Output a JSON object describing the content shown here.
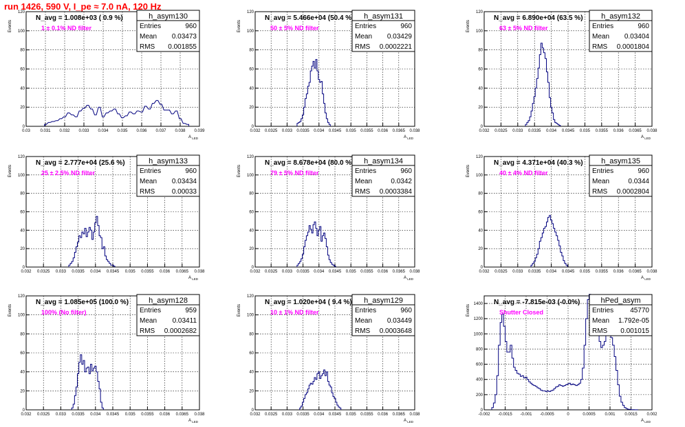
{
  "canvas": {
    "title": "run 1426,   590 V, I_pe ≈ 7.0 nA, 120 Hz"
  },
  "colors": {
    "title": "#ff0000",
    "annotation": "#ff00ff",
    "histogram": "#00007f",
    "grid": "#000000"
  },
  "chart_data": [
    {
      "type": "bar",
      "stat_title": "h_asym130",
      "navg": "N_avg = 1.008e+03 ( 0.9 %)",
      "note": "1 ± 0.1% ND filter",
      "stats": [
        [
          "Entries",
          "960"
        ],
        [
          "Mean",
          "0.03473"
        ],
        [
          "RMS",
          "0.001855"
        ]
      ],
      "ylabel": "Events",
      "xlabel": "A_LED",
      "xlim": [
        0.03,
        0.039
      ],
      "ylim": [
        0,
        120
      ],
      "xticks": [
        "0.03",
        "0.031",
        "0.032",
        "0.033",
        "0.034",
        "0.035",
        "0.036",
        "0.037",
        "0.038",
        "0.039"
      ],
      "yticks": [
        "0",
        "20",
        "40",
        "60",
        "80",
        "100",
        "120"
      ],
      "bin_width": 9e-05,
      "bins_x": [
        0.031,
        0.0312,
        0.0314,
        0.0316,
        0.0318,
        0.032,
        0.0322,
        0.0324,
        0.0326,
        0.0328,
        0.033,
        0.0332,
        0.0334,
        0.0336,
        0.0338,
        0.034,
        0.0342,
        0.0344,
        0.0346,
        0.0348,
        0.035,
        0.0352,
        0.0354,
        0.0356,
        0.0358,
        0.036,
        0.0362,
        0.0364,
        0.0366,
        0.0368,
        0.037,
        0.0372,
        0.0374,
        0.0376,
        0.0378,
        0.038,
        0.0382,
        0.0384
      ],
      "counts": [
        2,
        4,
        5,
        6,
        8,
        10,
        14,
        12,
        10,
        16,
        19,
        22,
        18,
        12,
        20,
        10,
        14,
        16,
        18,
        13,
        9,
        11,
        15,
        13,
        16,
        15,
        21,
        18,
        24,
        27,
        23,
        17,
        17,
        13,
        16,
        8,
        3,
        2
      ]
    },
    {
      "type": "bar",
      "stat_title": "h_asym131",
      "navg": "N_avg = 5.466e+04 (50.4 %)",
      "note": "50 ± 5% ND filter",
      "stats": [
        [
          "Entries",
          "960"
        ],
        [
          "Mean",
          "0.03429"
        ],
        [
          "RMS",
          "0.0002221"
        ]
      ],
      "ylabel": "Events",
      "xlabel": "A_LED",
      "xlim": [
        0.032,
        0.038
      ],
      "ylim": [
        0,
        120
      ],
      "xticks": [
        "0.032",
        "0.0325",
        "0.033",
        "0.0335",
        "0.034",
        "0.0345",
        "0.035",
        "0.0355",
        "0.036",
        "0.0365",
        "0.038"
      ],
      "yticks": [
        "0",
        "20",
        "40",
        "60",
        "80",
        "100",
        "120"
      ],
      "bin_width": 5e-05,
      "bins_x": [
        0.0336,
        0.03365,
        0.0337,
        0.03375,
        0.0338,
        0.03385,
        0.0339,
        0.03395,
        0.034,
        0.03405,
        0.0341,
        0.03415,
        0.0342,
        0.03425,
        0.0343,
        0.03435,
        0.0344,
        0.03445,
        0.0345,
        0.03455,
        0.0346,
        0.03465,
        0.0347,
        0.03475,
        0.0348
      ],
      "counts": [
        3,
        4,
        5,
        8,
        12,
        20,
        29,
        34,
        42,
        46,
        58,
        63,
        68,
        61,
        70,
        58,
        49,
        46,
        47,
        34,
        24,
        14,
        8,
        4,
        2
      ]
    },
    {
      "type": "bar",
      "stat_title": "h_asym132",
      "navg": "N_avg = 6.890e+04 (63.5 %)",
      "note": "63 ± 5% ND filter",
      "stats": [
        [
          "Entries",
          "960"
        ],
        [
          "Mean",
          "0.03404"
        ],
        [
          "RMS",
          "0.0001804"
        ]
      ],
      "ylabel": "Events",
      "xlabel": "A_LED",
      "xlim": [
        0.032,
        0.038
      ],
      "ylim": [
        0,
        120
      ],
      "xticks": [
        "0.032",
        "0.0325",
        "0.033",
        "0.0335",
        "0.034",
        "0.0345",
        "0.035",
        "0.0355",
        "0.036",
        "0.0365",
        "0.038"
      ],
      "yticks": [
        "0",
        "20",
        "40",
        "60",
        "80",
        "100",
        "120"
      ],
      "bin_width": 5e-05,
      "bins_x": [
        0.0335,
        0.03355,
        0.0336,
        0.03365,
        0.0337,
        0.03375,
        0.0338,
        0.03385,
        0.0339,
        0.03395,
        0.034,
        0.03405,
        0.0341,
        0.03415,
        0.0342,
        0.03425,
        0.0343,
        0.03435,
        0.0344,
        0.03445,
        0.0345,
        0.03455,
        0.0346,
        0.03465,
        0.0347
      ],
      "counts": [
        2,
        4,
        6,
        10,
        16,
        24,
        31,
        40,
        50,
        61,
        75,
        87,
        82,
        77,
        71,
        57,
        46,
        30,
        20,
        14,
        7,
        4,
        3,
        2,
        1
      ]
    },
    {
      "type": "bar",
      "stat_title": "h_asym133",
      "navg": "N_avg = 2.777e+04 (25.6 %)",
      "note": "25 ± 2.5% ND filter",
      "stats": [
        [
          "Entries",
          "960"
        ],
        [
          "Mean",
          "0.03434"
        ],
        [
          "RMS",
          "0.00033"
        ]
      ],
      "ylabel": "Events",
      "xlabel": "A_LED",
      "xlim": [
        0.032,
        0.038
      ],
      "ylim": [
        0,
        120
      ],
      "xticks": [
        "0.032",
        "0.0325",
        "0.033",
        "0.0335",
        "0.034",
        "0.0345",
        "0.035",
        "0.0355",
        "0.036",
        "0.0365",
        "0.038"
      ],
      "yticks": [
        "0",
        "20",
        "40",
        "60",
        "80",
        "100",
        "120"
      ],
      "bin_width": 5e-05,
      "bins_x": [
        0.0335,
        0.03355,
        0.0336,
        0.03365,
        0.0337,
        0.03375,
        0.0338,
        0.03385,
        0.0339,
        0.03395,
        0.034,
        0.03405,
        0.0341,
        0.03415,
        0.0342,
        0.03425,
        0.0343,
        0.03435,
        0.0344,
        0.03445,
        0.0345,
        0.03455,
        0.0346,
        0.03465,
        0.0347,
        0.03475,
        0.0348,
        0.03485,
        0.0349,
        0.03495,
        0.035,
        0.03505
      ],
      "counts": [
        2,
        4,
        6,
        10,
        16,
        22,
        27,
        34,
        32,
        38,
        36,
        42,
        33,
        38,
        43,
        40,
        30,
        38,
        48,
        55,
        45,
        34,
        32,
        20,
        22,
        12,
        8,
        6,
        4,
        2,
        2,
        1
      ]
    },
    {
      "type": "bar",
      "stat_title": "h_asym134",
      "navg": "N_avg = 8.678e+04 (80.0 %)",
      "note": "79 ± 5% ND filter",
      "stats": [
        [
          "Entries",
          "960"
        ],
        [
          "Mean",
          "0.0342"
        ],
        [
          "RMS",
          "0.0003384"
        ]
      ],
      "ylabel": "Events",
      "xlabel": "A_LED",
      "xlim": [
        0.032,
        0.038
      ],
      "ylim": [
        0,
        120
      ],
      "xticks": [
        "0.032",
        "0.0325",
        "0.033",
        "0.0335",
        "0.034",
        "0.0345",
        "0.035",
        "0.0355",
        "0.036",
        "0.0365",
        "0.038"
      ],
      "yticks": [
        "0",
        "20",
        "40",
        "60",
        "80",
        "100",
        "120"
      ],
      "bin_width": 5e-05,
      "bins_x": [
        0.0336,
        0.03365,
        0.0337,
        0.03375,
        0.0338,
        0.03385,
        0.0339,
        0.03395,
        0.034,
        0.03405,
        0.0341,
        0.03415,
        0.0342,
        0.03425,
        0.0343,
        0.03435,
        0.0344,
        0.03445,
        0.0345,
        0.03455,
        0.0346,
        0.03465,
        0.0347,
        0.03475,
        0.0348,
        0.03485,
        0.0349,
        0.03495,
        0.035
      ],
      "counts": [
        2,
        4,
        6,
        9,
        14,
        22,
        29,
        34,
        38,
        45,
        41,
        37,
        46,
        49,
        42,
        34,
        40,
        44,
        28,
        34,
        37,
        31,
        22,
        13,
        8,
        5,
        3,
        2,
        1
      ]
    },
    {
      "type": "bar",
      "stat_title": "h_asym135",
      "navg": "N_avg = 4.371e+04 (40.3 %)",
      "note": "40 ± 4% ND filter",
      "stats": [
        [
          "Entries",
          "960"
        ],
        [
          "Mean",
          "0.0344"
        ],
        [
          "RMS",
          "0.0002804"
        ]
      ],
      "ylabel": "Events",
      "xlabel": "A_LED",
      "xlim": [
        0.032,
        0.038
      ],
      "ylim": [
        0,
        120
      ],
      "xticks": [
        "0.032",
        "0.0325",
        "0.033",
        "0.0335",
        "0.034",
        "0.0345",
        "0.035",
        "0.0355",
        "0.036",
        "0.0365",
        "0.038"
      ],
      "yticks": [
        "0",
        "20",
        "40",
        "60",
        "80",
        "100",
        "120"
      ],
      "bin_width": 5e-05,
      "bins_x": [
        0.0337,
        0.03375,
        0.0338,
        0.03385,
        0.0339,
        0.03395,
        0.034,
        0.03405,
        0.0341,
        0.03415,
        0.0342,
        0.03425,
        0.0343,
        0.03435,
        0.0344,
        0.03445,
        0.0345,
        0.03455,
        0.0346,
        0.03465,
        0.0347,
        0.03475,
        0.0348,
        0.03485,
        0.0349,
        0.03495
      ],
      "counts": [
        2,
        4,
        6,
        10,
        14,
        20,
        28,
        32,
        37,
        42,
        44,
        49,
        54,
        56,
        51,
        47,
        42,
        38,
        34,
        29,
        23,
        16,
        12,
        7,
        4,
        2
      ]
    },
    {
      "type": "bar",
      "stat_title": "h_asym128",
      "navg": "N_avg = 1.085e+05 (100.0 %)",
      "note": "100% (No filter)",
      "stats": [
        [
          "Entries",
          "959"
        ],
        [
          "Mean",
          "0.03411"
        ],
        [
          "RMS",
          "0.0002682"
        ]
      ],
      "ylabel": "Events",
      "xlabel": "A_LED",
      "xlim": [
        0.032,
        0.038
      ],
      "ylim": [
        0,
        120
      ],
      "xticks": [
        "0.032",
        "0.0325",
        "0.033",
        "0.0335",
        "0.034",
        "0.0345",
        "0.035",
        "0.0355",
        "0.036",
        "0.0365",
        "0.038"
      ],
      "yticks": [
        "0",
        "20",
        "40",
        "60",
        "80",
        "100",
        "120"
      ],
      "bin_width": 5e-05,
      "bins_x": [
        0.0336,
        0.03365,
        0.0337,
        0.03375,
        0.0338,
        0.03385,
        0.0339,
        0.03395,
        0.034,
        0.03405,
        0.0341,
        0.03415,
        0.0342,
        0.03425,
        0.0343,
        0.03435,
        0.0344,
        0.03445,
        0.0345,
        0.03455,
        0.0346,
        0.03465
      ],
      "counts": [
        2,
        6,
        15,
        24,
        38,
        50,
        58,
        48,
        52,
        40,
        44,
        45,
        38,
        48,
        41,
        44,
        46,
        40,
        30,
        22,
        8,
        2
      ]
    },
    {
      "type": "bar",
      "stat_title": "h_asym129",
      "navg": "N_avg = 1.020e+04 ( 9.4 %)",
      "note": "10 ± 1% ND filter",
      "stats": [
        [
          "Entries",
          "960"
        ],
        [
          "Mean",
          "0.03449"
        ],
        [
          "RMS",
          "0.0003648"
        ]
      ],
      "ylabel": "Events",
      "xlabel": "A_LED",
      "xlim": [
        0.032,
        0.038
      ],
      "ylim": [
        0,
        120
      ],
      "xticks": [
        "0.032",
        "0.0325",
        "0.033",
        "0.0335",
        "0.034",
        "0.0345",
        "0.035",
        "0.0355",
        "0.036",
        "0.0365",
        "0.038"
      ],
      "yticks": [
        "0",
        "20",
        "40",
        "60",
        "80",
        "100",
        "120"
      ],
      "bin_width": 5e-05,
      "bins_x": [
        0.0337,
        0.03375,
        0.0338,
        0.03385,
        0.0339,
        0.03395,
        0.034,
        0.03405,
        0.0341,
        0.03415,
        0.0342,
        0.03425,
        0.0343,
        0.03435,
        0.0344,
        0.03445,
        0.0345,
        0.03455,
        0.0346,
        0.03465,
        0.0347,
        0.03475,
        0.0348,
        0.03485,
        0.0349,
        0.03495,
        0.035,
        0.03505,
        0.0351,
        0.03515,
        0.0352
      ],
      "counts": [
        2,
        4,
        8,
        12,
        16,
        18,
        22,
        26,
        28,
        27,
        30,
        34,
        32,
        38,
        40,
        33,
        36,
        38,
        42,
        36,
        40,
        30,
        26,
        24,
        18,
        14,
        12,
        8,
        5,
        3,
        2
      ]
    },
    {
      "type": "bar",
      "stat_title": "hPed_asym",
      "navg": "N_avg = -7.815e-03 (-0.0%)",
      "note": "Shutter Closed",
      "stats": [
        [
          "Entries",
          "45770"
        ],
        [
          "Mean",
          "1.792e-05"
        ],
        [
          "RMS",
          "0.001015"
        ]
      ],
      "ylabel": "Events",
      "xlabel": "A_LED",
      "xlim": [
        -0.002,
        0.002
      ],
      "ylim": [
        0,
        1500
      ],
      "xticks": [
        "-0.002",
        "-0.0015",
        "-0.001",
        "-0.0005",
        "0",
        "0.0005",
        "0.001",
        "0.0015",
        "0.002"
      ],
      "yticks": [
        "0",
        "200",
        "400",
        "600",
        "800",
        "1000",
        "1200",
        "1400"
      ],
      "bin_width": 4e-05,
      "bins_x": [
        -0.0018,
        -0.00176,
        -0.00172,
        -0.00168,
        -0.00164,
        -0.0016,
        -0.00156,
        -0.00152,
        -0.00148,
        -0.00144,
        -0.0014,
        -0.00136,
        -0.00132,
        -0.00128,
        -0.00124,
        -0.0012,
        -0.00116,
        -0.00112,
        -0.00108,
        -0.00104,
        -0.001,
        -0.00096,
        -0.00092,
        -0.00088,
        -0.00084,
        -0.0008,
        -0.00076,
        -0.00072,
        -0.00068,
        -0.00064,
        -0.0006,
        -0.00056,
        -0.00052,
        -0.00048,
        -0.00044,
        -0.0004,
        -0.00036,
        -0.00032,
        -0.00028,
        -0.00024,
        -0.0002,
        -0.00016,
        -0.00012,
        -8e-05,
        -4e-05,
        0.0,
        4e-05,
        8e-05,
        0.00012,
        0.00016,
        0.0002,
        0.00024,
        0.00028,
        0.00032,
        0.00036,
        0.0004,
        0.00044,
        0.00048,
        0.00052,
        0.00056,
        0.0006,
        0.00064,
        0.00068,
        0.00072,
        0.00076,
        0.0008,
        0.00084,
        0.00088,
        0.00092,
        0.00096,
        0.001,
        0.00104,
        0.00108,
        0.00112,
        0.00116,
        0.0012,
        0.00124,
        0.00128,
        0.00132,
        0.00136,
        0.0014,
        0.00144,
        0.00148,
        0.00152,
        0.00156,
        0.0016,
        0.00164
      ],
      "counts": [
        30,
        90,
        200,
        450,
        850,
        1150,
        1260,
        1100,
        900,
        760,
        760,
        850,
        680,
        560,
        520,
        480,
        470,
        440,
        450,
        420,
        430,
        400,
        370,
        350,
        330,
        320,
        310,
        290,
        280,
        260,
        250,
        250,
        240,
        250,
        240,
        250,
        260,
        280,
        300,
        310,
        330,
        320,
        310,
        320,
        330,
        340,
        350,
        330,
        340,
        330,
        320,
        330,
        350,
        400,
        550,
        850,
        1200,
        1450,
        1520,
        1400,
        1350,
        1250,
        1200,
        1100,
        900,
        820,
        850,
        900,
        980,
        1050,
        1000,
        950,
        850,
        700,
        520,
        330,
        180,
        100,
        60,
        30,
        15,
        8,
        5,
        3,
        2,
        1,
        1
      ]
    }
  ]
}
